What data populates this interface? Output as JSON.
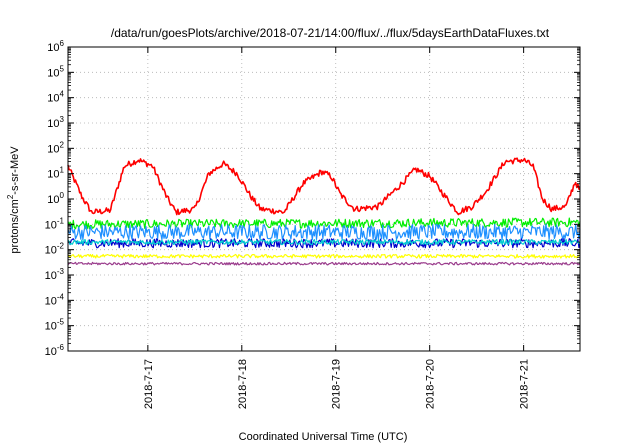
{
  "chart_data": {
    "type": "line",
    "title": "/data/run/goesPlots/archive/2018-07-21/14:00/flux/../flux/5daysEarthDataFluxes.txt",
    "xlabel": "Coordinated Universal Time (UTC)",
    "ylabel": "protons/cm2-s-sr-MeV",
    "ylabel_parts": {
      "before": "protons/cm",
      "sup": "2",
      "after": "-s-sr-MeV"
    },
    "x_unit": "day (July 2018, UTC)",
    "xlim": [
      16.15,
      21.6
    ],
    "y_scale": "log",
    "ylim": [
      1e-06,
      1000000.0
    ],
    "grid": true,
    "legend": "none",
    "y_ticks": [
      {
        "value": -6,
        "base": "10",
        "exp": "-6"
      },
      {
        "value": -5,
        "base": "10",
        "exp": "-5"
      },
      {
        "value": -4,
        "base": "10",
        "exp": "-4"
      },
      {
        "value": -3,
        "base": "10",
        "exp": "-3"
      },
      {
        "value": -2,
        "base": "10",
        "exp": "-2"
      },
      {
        "value": -1,
        "base": "10",
        "exp": "-1"
      },
      {
        "value": 0,
        "base": "10",
        "exp": "0"
      },
      {
        "value": 1,
        "base": "10",
        "exp": "1"
      },
      {
        "value": 2,
        "base": "10",
        "exp": "2"
      },
      {
        "value": 3,
        "base": "10",
        "exp": "3"
      },
      {
        "value": 4,
        "base": "10",
        "exp": "4"
      },
      {
        "value": 5,
        "base": "10",
        "exp": "5"
      },
      {
        "value": 6,
        "base": "10",
        "exp": "6"
      }
    ],
    "x_ticks": [
      {
        "value": 17,
        "label": "2018-7-17"
      },
      {
        "value": 18,
        "label": "2018-7-18"
      },
      {
        "value": 19,
        "label": "2018-7-19"
      },
      {
        "value": 20,
        "label": "2018-7-20"
      },
      {
        "value": 21,
        "label": "2018-7-21"
      }
    ],
    "series": [
      {
        "color": "#ff0000",
        "noise": 0.12,
        "points": [
          [
            16.15,
            20
          ],
          [
            16.3,
            1.2
          ],
          [
            16.4,
            0.3
          ],
          [
            16.6,
            0.35
          ],
          [
            16.75,
            20
          ],
          [
            16.9,
            35
          ],
          [
            17.05,
            20
          ],
          [
            17.2,
            1.2
          ],
          [
            17.3,
            0.3
          ],
          [
            17.5,
            0.4
          ],
          [
            17.65,
            10
          ],
          [
            17.8,
            25
          ],
          [
            17.95,
            10
          ],
          [
            18.1,
            1.2
          ],
          [
            18.2,
            0.4
          ],
          [
            18.45,
            0.3
          ],
          [
            18.65,
            4
          ],
          [
            18.85,
            12
          ],
          [
            18.95,
            8
          ],
          [
            19.05,
            1.5
          ],
          [
            19.2,
            0.4
          ],
          [
            19.45,
            0.5
          ],
          [
            19.7,
            4
          ],
          [
            19.85,
            15
          ],
          [
            20.0,
            8
          ],
          [
            20.15,
            1.5
          ],
          [
            20.3,
            0.3
          ],
          [
            20.45,
            0.5
          ],
          [
            20.6,
            2
          ],
          [
            20.8,
            30
          ],
          [
            21.0,
            35
          ],
          [
            21.1,
            20
          ],
          [
            21.2,
            1
          ],
          [
            21.3,
            0.4
          ],
          [
            21.45,
            0.5
          ],
          [
            21.55,
            5
          ],
          [
            21.6,
            2
          ]
        ]
      },
      {
        "color": "#00ee00",
        "noise": 0.18,
        "points": [
          [
            16.15,
            0.1
          ],
          [
            21.6,
            0.12
          ]
        ]
      },
      {
        "color": "#1e90ff",
        "noise": 0.3,
        "points": [
          [
            16.15,
            0.05
          ],
          [
            21.6,
            0.05
          ]
        ]
      },
      {
        "color": "#0000cd",
        "noise": 0.18,
        "points": [
          [
            16.15,
            0.018
          ],
          [
            21.6,
            0.018
          ]
        ]
      },
      {
        "color": "#00ced1",
        "noise": 0.1,
        "points": [
          [
            16.15,
            0.02
          ],
          [
            21.6,
            0.02
          ]
        ]
      },
      {
        "color": "#ffff00",
        "noise": 0.07,
        "points": [
          [
            16.15,
            0.0055
          ],
          [
            21.6,
            0.0055
          ]
        ]
      },
      {
        "color": "#9a3c8c",
        "noise": 0.05,
        "points": [
          [
            16.15,
            0.0028
          ],
          [
            21.6,
            0.0028
          ]
        ]
      }
    ]
  }
}
